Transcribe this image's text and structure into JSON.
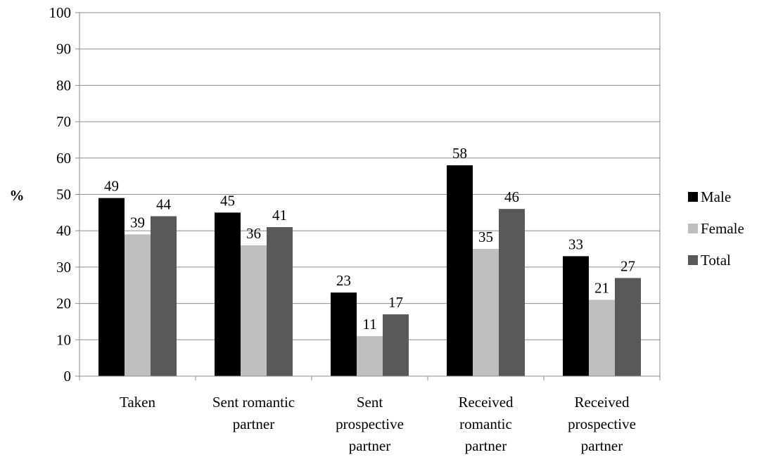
{
  "chart_data": {
    "type": "bar",
    "title": "",
    "xlabel": "",
    "ylabel": "%",
    "ylim": [
      0,
      100
    ],
    "yticks": [
      0,
      10,
      20,
      30,
      40,
      50,
      60,
      70,
      80,
      90,
      100
    ],
    "grid": true,
    "legend_position": "right",
    "categories": [
      [
        "Taken"
      ],
      [
        "Sent romantic",
        "partner"
      ],
      [
        "Sent",
        "prospective",
        "partner"
      ],
      [
        "Received",
        "romantic",
        "partner"
      ],
      [
        "Received",
        "prospective",
        "partner"
      ]
    ],
    "series": [
      {
        "name": "Male",
        "color": "#000000",
        "values": [
          49,
          45,
          23,
          58,
          33
        ]
      },
      {
        "name": "Female",
        "color": "#bfbfbf",
        "values": [
          39,
          36,
          11,
          35,
          21
        ]
      },
      {
        "name": "Total",
        "color": "#595959",
        "values": [
          44,
          41,
          17,
          46,
          27
        ]
      }
    ]
  }
}
